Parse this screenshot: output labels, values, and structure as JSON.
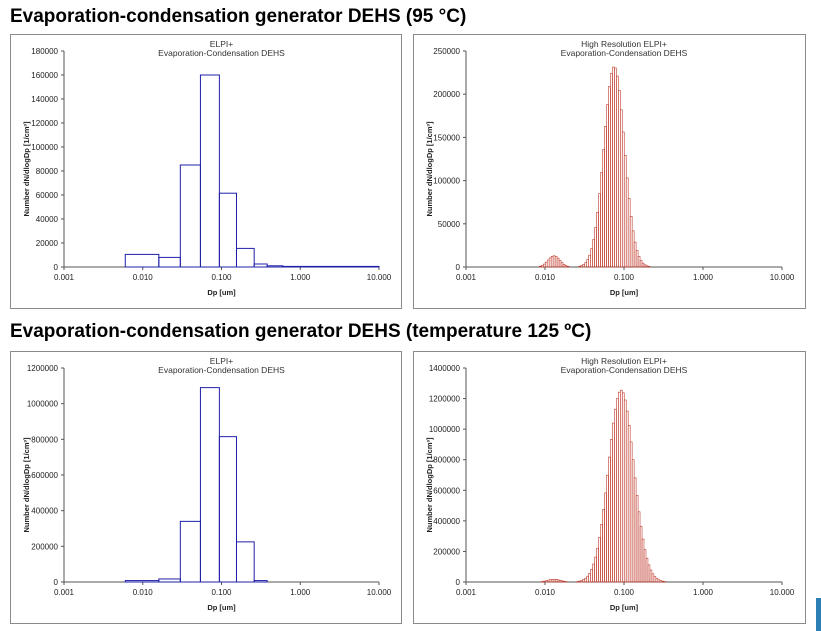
{
  "titles": {
    "top": "Evaporation-condensation generator DEHS (95 °C)",
    "bottom": "Evaporation-condensation generator DEHS (temperature 125 ºC)"
  },
  "colors": {
    "blue": "#1f1fa8",
    "red": "#c0392b",
    "accent": "#2b7fb3"
  },
  "chart_data": [
    {
      "id": "c1",
      "type": "bar",
      "style": "step-histogram",
      "x_scale": "log",
      "title_lines": [
        "ELPI+",
        "Evaporation-Condensation DEHS"
      ],
      "xlabel": "Dp [um]",
      "ylabel": "Number dN/dlogDp [1/cm³]",
      "xlim": [
        0.001,
        10
      ],
      "ylim": [
        0,
        180000
      ],
      "yticks": [
        0,
        20000,
        40000,
        60000,
        80000,
        100000,
        120000,
        140000,
        160000,
        180000
      ],
      "ytick_labels": [
        "0",
        "20000",
        "40000",
        "60000",
        "80000",
        "100000",
        "120000",
        "140000",
        "160000",
        "180000"
      ],
      "xticks": [
        0.001,
        0.01,
        0.1,
        1,
        10
      ],
      "xtick_labels": [
        "0.001",
        "0.010",
        "0.100",
        "1.000",
        "10.000"
      ],
      "bins": [
        [
          0.006,
          0.016,
          10500
        ],
        [
          0.016,
          0.03,
          8000
        ],
        [
          0.03,
          0.054,
          85000
        ],
        [
          0.054,
          0.094,
          160000
        ],
        [
          0.094,
          0.155,
          61500
        ],
        [
          0.155,
          0.26,
          15500
        ],
        [
          0.26,
          0.38,
          2500
        ],
        [
          0.38,
          0.6,
          1000
        ],
        [
          0.6,
          10,
          500
        ]
      ],
      "color": "#1f1fa8"
    },
    {
      "id": "c2",
      "type": "bar",
      "style": "fine-histogram",
      "x_scale": "log",
      "title_lines": [
        "High Resolution ELPI+",
        "Evaporation-Condensation DEHS"
      ],
      "xlabel": "Dp [um]",
      "ylabel": "Number dN/dlogDp [1/cm³]",
      "xlim": [
        0.001,
        10
      ],
      "ylim": [
        0,
        250000
      ],
      "yticks": [
        0,
        50000,
        100000,
        150000,
        200000,
        250000
      ],
      "ytick_labels": [
        "0",
        "50000",
        "100000",
        "150000",
        "200000",
        "250000"
      ],
      "xticks": [
        0.001,
        0.01,
        0.1,
        1,
        10
      ],
      "xtick_labels": [
        "0.001",
        "0.010",
        "0.100",
        "1.000",
        "10.000"
      ],
      "peaks": [
        {
          "center": 0.075,
          "width_decades": 0.13,
          "height": 232000
        },
        {
          "center": 0.013,
          "width_decades": 0.075,
          "height": 13000
        }
      ],
      "bins_per_decade": 40,
      "x_range": [
        0.006,
        0.35
      ],
      "color": "#c0392b"
    },
    {
      "id": "c3",
      "type": "bar",
      "style": "step-histogram",
      "x_scale": "log",
      "title_lines": [
        "ELPI+",
        "Evaporation-Condensation DEHS"
      ],
      "xlabel": "Dp [um]",
      "ylabel": "Number dN/dlogDp [1/cm³]",
      "xlim": [
        0.001,
        10
      ],
      "ylim": [
        0,
        1200000
      ],
      "yticks": [
        0,
        200000,
        400000,
        600000,
        800000,
        1000000,
        1200000
      ],
      "ytick_labels": [
        "0",
        "200000",
        "400000",
        "600000",
        "800000",
        "1000000",
        "1200000"
      ],
      "xticks": [
        0.001,
        0.01,
        0.1,
        1,
        10
      ],
      "xtick_labels": [
        "0.001",
        "0.010",
        "0.100",
        "1.000",
        "10.000"
      ],
      "bins": [
        [
          0.006,
          0.016,
          8000
        ],
        [
          0.016,
          0.03,
          17000
        ],
        [
          0.03,
          0.054,
          340000
        ],
        [
          0.054,
          0.094,
          1090000
        ],
        [
          0.094,
          0.155,
          815000
        ],
        [
          0.155,
          0.26,
          225000
        ],
        [
          0.26,
          0.38,
          8000
        ]
      ],
      "color": "#1f1fa8"
    },
    {
      "id": "c4",
      "type": "bar",
      "style": "fine-histogram",
      "x_scale": "log",
      "title_lines": [
        "High Resolution ELPI+",
        "Evaporation-Condensation DEHS"
      ],
      "xlabel": "Dp [um]",
      "ylabel": "Number dN/dlogDp [1/cm³]",
      "xlim": [
        0.001,
        10
      ],
      "ylim": [
        0,
        1400000
      ],
      "yticks": [
        0,
        200000,
        400000,
        600000,
        800000,
        1000000,
        1200000,
        1400000
      ],
      "ytick_labels": [
        "0",
        "200000",
        "400000",
        "600000",
        "800000",
        "1000000",
        "1200000",
        "1400000"
      ],
      "xticks": [
        0.001,
        0.01,
        0.1,
        1,
        10
      ],
      "xtick_labels": [
        "0.001",
        "0.010",
        "0.100",
        "1.000",
        "10.000"
      ],
      "peaks": [
        {
          "center": 0.092,
          "width_decades": 0.16,
          "height": 1255000
        },
        {
          "center": 0.013,
          "width_decades": 0.08,
          "height": 18000
        }
      ],
      "bins_per_decade": 40,
      "x_range": [
        0.006,
        0.4
      ],
      "color": "#c0392b"
    }
  ]
}
